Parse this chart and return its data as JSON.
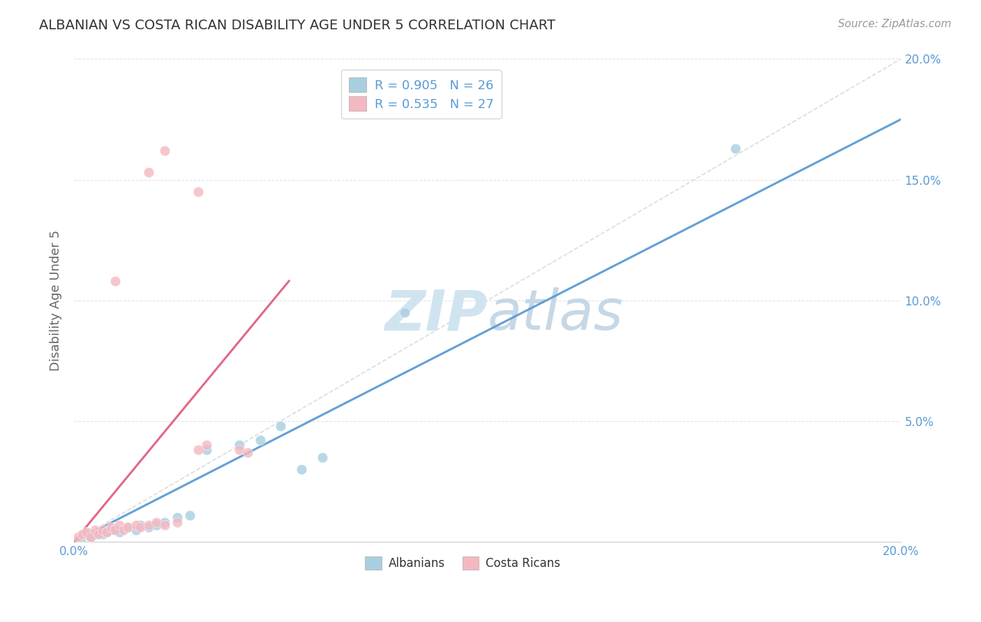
{
  "title": "ALBANIAN VS COSTA RICAN DISABILITY AGE UNDER 5 CORRELATION CHART",
  "source": "Source: ZipAtlas.com",
  "ylabel": "Disability Age Under 5",
  "xlim": [
    0.0,
    0.2
  ],
  "ylim": [
    0.0,
    0.2
  ],
  "yticks": [
    0.0,
    0.05,
    0.1,
    0.15,
    0.2
  ],
  "ytick_labels": [
    "",
    "5.0%",
    "10.0%",
    "15.0%",
    "20.0%"
  ],
  "xticks": [
    0.0,
    0.04,
    0.08,
    0.12,
    0.16,
    0.2
  ],
  "xtick_labels": [
    "0.0%",
    "",
    "",
    "",
    "",
    "20.0%"
  ],
  "legend_line1": "R = 0.905   N = 26",
  "legend_line2": "R = 0.535   N = 27",
  "albanian_color": "#a8cfe0",
  "costarican_color": "#f4b8c1",
  "albanian_line_color": "#5b9bd5",
  "costarican_line_color": "#e06080",
  "diag_line_color": "#cccccc",
  "watermark_color": "#d0e4f0",
  "background_color": "#ffffff",
  "title_color": "#333333",
  "tick_color": "#5b9bd5",
  "grid_color": "#e0e0e0",
  "albanian_points": [
    [
      0.002,
      0.002
    ],
    [
      0.003,
      0.003
    ],
    [
      0.004,
      0.002
    ],
    [
      0.005,
      0.003
    ],
    [
      0.006,
      0.004
    ],
    [
      0.007,
      0.003
    ],
    [
      0.008,
      0.004
    ],
    [
      0.009,
      0.005
    ],
    [
      0.01,
      0.005
    ],
    [
      0.011,
      0.004
    ],
    [
      0.013,
      0.006
    ],
    [
      0.015,
      0.005
    ],
    [
      0.016,
      0.007
    ],
    [
      0.018,
      0.006
    ],
    [
      0.02,
      0.007
    ],
    [
      0.022,
      0.008
    ],
    [
      0.025,
      0.01
    ],
    [
      0.028,
      0.011
    ],
    [
      0.032,
      0.038
    ],
    [
      0.04,
      0.04
    ],
    [
      0.045,
      0.042
    ],
    [
      0.05,
      0.048
    ],
    [
      0.055,
      0.03
    ],
    [
      0.06,
      0.035
    ],
    [
      0.08,
      0.095
    ],
    [
      0.16,
      0.163
    ]
  ],
  "costarican_points": [
    [
      0.001,
      0.002
    ],
    [
      0.002,
      0.003
    ],
    [
      0.003,
      0.004
    ],
    [
      0.004,
      0.002
    ],
    [
      0.005,
      0.005
    ],
    [
      0.006,
      0.003
    ],
    [
      0.007,
      0.005
    ],
    [
      0.008,
      0.004
    ],
    [
      0.009,
      0.006
    ],
    [
      0.01,
      0.005
    ],
    [
      0.011,
      0.007
    ],
    [
      0.012,
      0.005
    ],
    [
      0.013,
      0.006
    ],
    [
      0.015,
      0.007
    ],
    [
      0.016,
      0.006
    ],
    [
      0.018,
      0.007
    ],
    [
      0.02,
      0.008
    ],
    [
      0.022,
      0.007
    ],
    [
      0.025,
      0.008
    ],
    [
      0.03,
      0.038
    ],
    [
      0.032,
      0.04
    ],
    [
      0.04,
      0.038
    ],
    [
      0.042,
      0.037
    ],
    [
      0.01,
      0.108
    ],
    [
      0.018,
      0.153
    ],
    [
      0.022,
      0.162
    ],
    [
      0.03,
      0.145
    ]
  ],
  "alb_line_x": [
    0.0,
    0.2
  ],
  "alb_line_y": [
    0.0,
    0.175
  ],
  "cr_line_x": [
    0.0,
    0.052
  ],
  "cr_line_y": [
    0.0,
    0.108
  ]
}
